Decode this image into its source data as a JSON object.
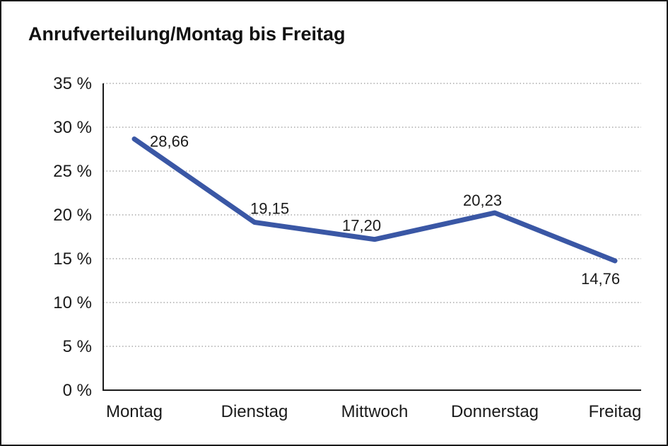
{
  "title": "Anrufverteilung/Montag bis Freitag",
  "chart_data": {
    "type": "line",
    "title": "Anrufverteilung/Montag bis Freitag",
    "categories": [
      "Montag",
      "Dienstag",
      "Mittwoch",
      "Donnerstag",
      "Freitag"
    ],
    "values": [
      28.66,
      19.15,
      17.2,
      20.23,
      14.76
    ],
    "value_labels": [
      "28,66",
      "19,15",
      "17,20",
      "20,23",
      "14,76"
    ],
    "xlabel": "",
    "ylabel": "",
    "ylim": [
      0,
      35
    ],
    "y_step": 5,
    "y_tick_labels": [
      "35 %",
      "30 %",
      "25 %",
      "20 %",
      "15 %",
      "10 %",
      "5 %",
      "0 %"
    ],
    "grid": "horizontal-dotted",
    "legend": "none",
    "line_color": "#3A57A5"
  },
  "colors": {
    "line": "#3A57A5",
    "grid": "#999999",
    "axis": "#1a1a1a",
    "text": "#1a1a1a",
    "background": "#ffffff"
  }
}
